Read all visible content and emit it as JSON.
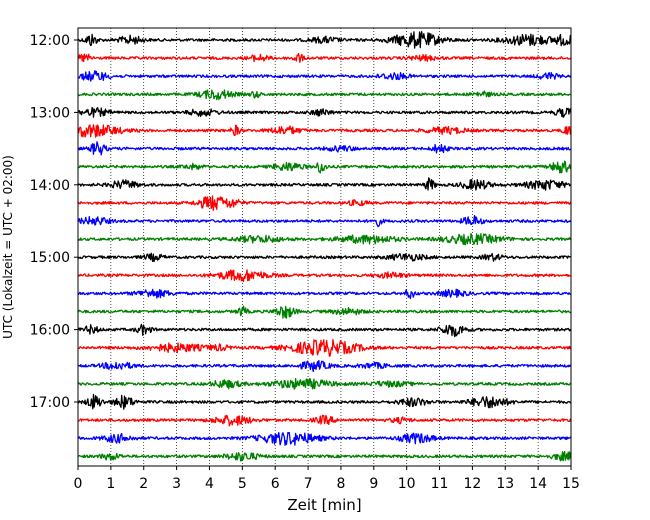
{
  "chart_data": {
    "type": "line",
    "title": "",
    "xlabel": "Zeit  [min]",
    "ylabel": "UTC (Lokalzeit = UTC + 02:00)",
    "xlim": [
      0,
      15
    ],
    "x_ticks": [
      "0",
      "1",
      "2",
      "3",
      "4",
      "5",
      "6",
      "7",
      "8",
      "9",
      "10",
      "11",
      "12",
      "13",
      "14",
      "15"
    ],
    "y_ticks": [
      "12:00",
      "13:00",
      "14:00",
      "15:00",
      "16:00",
      "17:00"
    ],
    "grid_x": "dotted",
    "colors_cycle": [
      "#000000",
      "#ff0000",
      "#0000ff",
      "#008000"
    ],
    "traces": [
      {
        "start": "12:00",
        "color": "#000000",
        "bursts": [
          [
            0.4,
            0.12,
            0.8
          ],
          [
            1.6,
            0.25,
            0.5
          ],
          [
            7.5,
            0.3,
            0.35
          ],
          [
            10.3,
            0.5,
            1.0
          ],
          [
            13.7,
            0.5,
            0.7
          ],
          [
            14.8,
            0.2,
            0.6
          ]
        ]
      },
      {
        "start": "12:15",
        "color": "#ff0000",
        "bursts": [
          [
            0.2,
            0.15,
            0.5
          ],
          [
            5.5,
            0.2,
            0.4
          ],
          [
            6.7,
            0.1,
            0.6
          ],
          [
            10.5,
            0.3,
            0.3
          ]
        ]
      },
      {
        "start": "12:30",
        "color": "#0000ff",
        "bursts": [
          [
            0.5,
            0.3,
            0.6
          ],
          [
            9.6,
            0.3,
            0.4
          ],
          [
            14.3,
            0.2,
            0.4
          ]
        ]
      },
      {
        "start": "12:45",
        "color": "#008000",
        "bursts": [
          [
            4.2,
            0.35,
            0.6
          ],
          [
            5.4,
            0.1,
            0.4
          ],
          [
            12.3,
            0.2,
            0.3
          ]
        ]
      },
      {
        "start": "13:00",
        "color": "#000000",
        "bursts": [
          [
            0.5,
            0.3,
            0.5
          ],
          [
            3.8,
            0.3,
            0.4
          ],
          [
            7.4,
            0.2,
            0.4
          ],
          [
            14.8,
            0.2,
            0.5
          ]
        ]
      },
      {
        "start": "13:15",
        "color": "#ff0000",
        "bursts": [
          [
            0.4,
            0.6,
            0.8
          ],
          [
            4.8,
            0.1,
            0.6
          ],
          [
            6.3,
            0.3,
            0.5
          ],
          [
            11.2,
            0.4,
            0.4
          ],
          [
            14.9,
            0.1,
            0.6
          ]
        ]
      },
      {
        "start": "13:30",
        "color": "#0000ff",
        "bursts": [
          [
            0.6,
            0.15,
            0.9
          ],
          [
            8.0,
            0.3,
            0.3
          ],
          [
            11.0,
            0.15,
            0.6
          ]
        ]
      },
      {
        "start": "13:45",
        "color": "#008000",
        "bursts": [
          [
            3.5,
            0.2,
            0.3
          ],
          [
            6.4,
            0.3,
            0.5
          ],
          [
            7.4,
            0.1,
            0.8
          ],
          [
            14.7,
            0.2,
            0.8
          ]
        ]
      },
      {
        "start": "14:00",
        "color": "#000000",
        "bursts": [
          [
            1.4,
            0.3,
            0.5
          ],
          [
            10.7,
            0.1,
            0.8
          ],
          [
            12.1,
            0.3,
            0.6
          ],
          [
            14.2,
            0.4,
            0.6
          ]
        ]
      },
      {
        "start": "14:15",
        "color": "#ff0000",
        "bursts": [
          [
            4.1,
            0.3,
            0.9
          ],
          [
            4.7,
            0.2,
            0.4
          ],
          [
            8.5,
            0.2,
            0.3
          ]
        ]
      },
      {
        "start": "14:30",
        "color": "#0000ff",
        "bursts": [
          [
            0.5,
            0.3,
            0.5
          ],
          [
            9.1,
            0.1,
            0.6
          ],
          [
            12.0,
            0.2,
            0.6
          ]
        ]
      },
      {
        "start": "14:45",
        "color": "#008000",
        "bursts": [
          [
            5.5,
            0.5,
            0.4
          ],
          [
            8.8,
            0.6,
            0.5
          ],
          [
            12.0,
            0.6,
            0.6
          ]
        ]
      },
      {
        "start": "15:00",
        "color": "#000000",
        "bursts": [
          [
            2.3,
            0.2,
            0.4
          ],
          [
            10.0,
            0.4,
            0.4
          ],
          [
            12.6,
            0.2,
            0.4
          ]
        ]
      },
      {
        "start": "15:15",
        "color": "#ff0000",
        "bursts": [
          [
            5.0,
            0.5,
            0.7
          ],
          [
            9.5,
            0.3,
            0.3
          ]
        ]
      },
      {
        "start": "15:30",
        "color": "#0000ff",
        "bursts": [
          [
            2.3,
            0.35,
            0.5
          ],
          [
            10.1,
            0.1,
            0.6
          ],
          [
            11.4,
            0.3,
            0.4
          ]
        ]
      },
      {
        "start": "15:45",
        "color": "#008000",
        "bursts": [
          [
            5.0,
            0.1,
            0.6
          ],
          [
            6.3,
            0.2,
            0.8
          ],
          [
            8.2,
            0.3,
            0.4
          ]
        ]
      },
      {
        "start": "16:00",
        "color": "#000000",
        "bursts": [
          [
            0.4,
            0.15,
            0.5
          ],
          [
            2.0,
            0.15,
            0.6
          ],
          [
            11.4,
            0.25,
            0.8
          ]
        ]
      },
      {
        "start": "16:15",
        "color": "#ff0000",
        "bursts": [
          [
            3.0,
            0.6,
            0.5
          ],
          [
            7.5,
            0.7,
            1.0
          ],
          [
            4.3,
            0.2,
            0.3
          ]
        ]
      },
      {
        "start": "16:30",
        "color": "#0000ff",
        "bursts": [
          [
            1.2,
            0.3,
            0.5
          ],
          [
            7.2,
            0.3,
            0.6
          ],
          [
            9.0,
            0.3,
            0.3
          ]
        ]
      },
      {
        "start": "16:45",
        "color": "#008000",
        "bursts": [
          [
            4.5,
            0.3,
            0.5
          ],
          [
            6.8,
            0.6,
            0.6
          ],
          [
            9.5,
            0.4,
            0.3
          ]
        ]
      },
      {
        "start": "17:00",
        "color": "#000000",
        "bursts": [
          [
            0.5,
            0.15,
            0.9
          ],
          [
            1.4,
            0.2,
            0.8
          ],
          [
            10.2,
            0.3,
            0.5
          ],
          [
            12.5,
            0.4,
            0.7
          ]
        ]
      },
      {
        "start": "17:15",
        "color": "#ff0000",
        "bursts": [
          [
            4.7,
            0.4,
            0.6
          ],
          [
            7.5,
            0.2,
            0.5
          ],
          [
            9.8,
            0.2,
            0.3
          ]
        ]
      },
      {
        "start": "17:30",
        "color": "#0000ff",
        "bursts": [
          [
            1.2,
            0.3,
            0.5
          ],
          [
            6.4,
            0.6,
            0.8
          ],
          [
            10.3,
            0.35,
            0.6
          ]
        ]
      },
      {
        "start": "17:45",
        "color": "#008000",
        "bursts": [
          [
            1.0,
            0.2,
            0.4
          ],
          [
            5.0,
            0.35,
            0.5
          ],
          [
            14.8,
            0.25,
            0.5
          ]
        ]
      }
    ]
  }
}
